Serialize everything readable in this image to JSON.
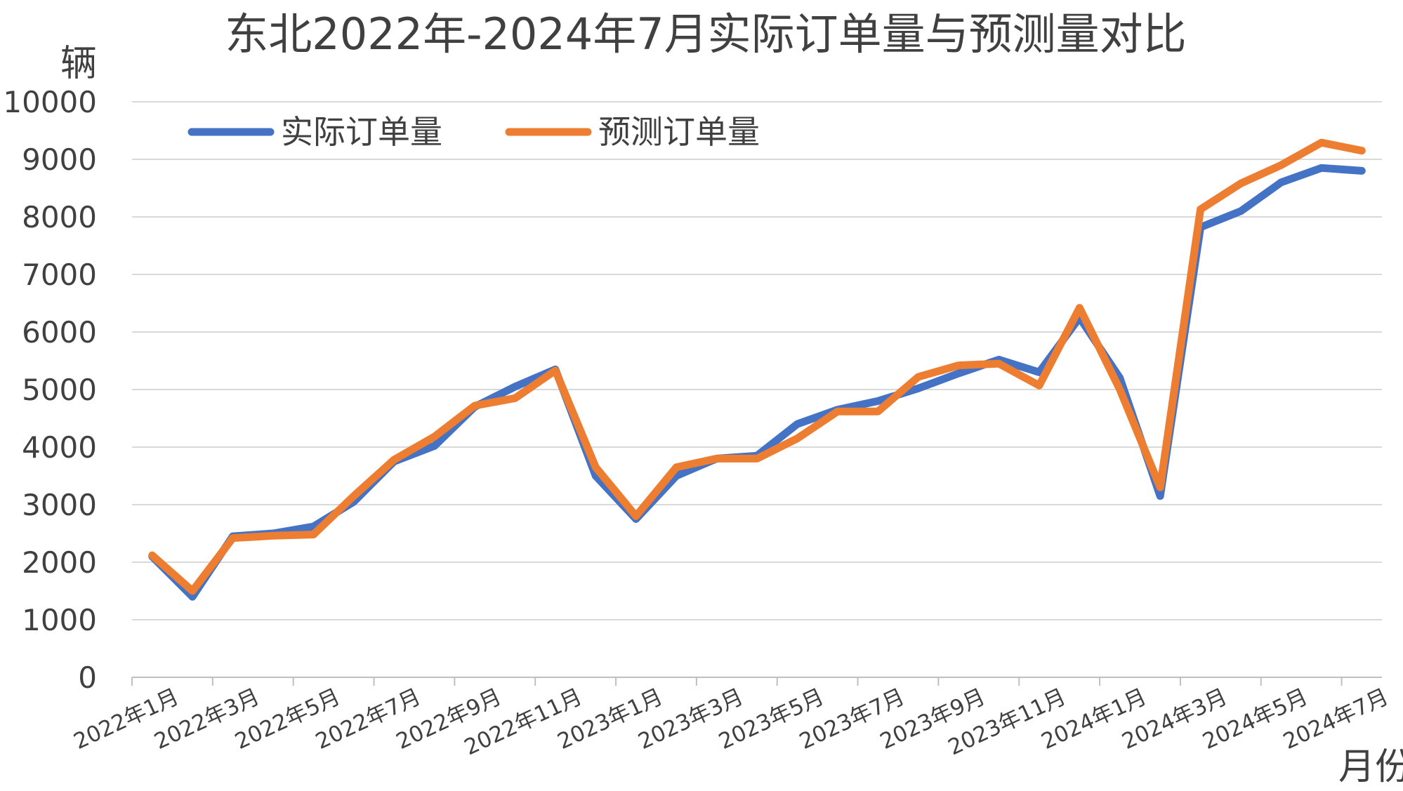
{
  "chart_data": {
    "type": "line",
    "title": "东北2022年-2024年7月实际订单量与预测量对比",
    "ylabel": "辆",
    "xlabel": "月份",
    "ylim": [
      0,
      10000
    ],
    "yticks": [
      "0",
      "1000",
      "2000",
      "3000",
      "4000",
      "5000",
      "6000",
      "7000",
      "8000",
      "9000",
      "10000"
    ],
    "grid": "horizontal",
    "legend": "top-left",
    "x": [
      "2022年1月",
      "2022年2月",
      "2022年3月",
      "2022年4月",
      "2022年5月",
      "2022年6月",
      "2022年7月",
      "2022年8月",
      "2022年9月",
      "2022年10月",
      "2022年11月",
      "2022年12月",
      "2023年1月",
      "2023年2月",
      "2023年3月",
      "2023年4月",
      "2023年5月",
      "2023年6月",
      "2023年7月",
      "2023年8月",
      "2023年9月",
      "2023年10月",
      "2023年11月",
      "2023年12月",
      "2024年1月",
      "2024年2月",
      "2024年3月",
      "2024年4月",
      "2024年5月",
      "2024年6月",
      "2024年7月"
    ],
    "xtick_labels": [
      "2022年1月",
      "2022年3月",
      "2022年5月",
      "2022年7月",
      "2022年9月",
      "2022年11月",
      "2023年1月",
      "2023年3月",
      "2023年5月",
      "2023年7月",
      "2023年9月",
      "2023年11月",
      "2024年1月",
      "2024年3月",
      "2024年5月",
      "2024年7月"
    ],
    "series": [
      {
        "name": "实际订单量",
        "color": "#4472c4",
        "values": [
          2100,
          1400,
          2450,
          2500,
          2620,
          3050,
          3750,
          4020,
          4700,
          5050,
          5350,
          3500,
          2750,
          3500,
          3800,
          3850,
          4400,
          4650,
          4800,
          5020,
          5280,
          5520,
          5300,
          6250,
          5200,
          3150,
          7820,
          8100,
          8600,
          8850,
          8800
        ]
      },
      {
        "name": "预测订单量",
        "color": "#ed7d31",
        "values": [
          2120,
          1500,
          2420,
          2460,
          2480,
          3150,
          3780,
          4180,
          4720,
          4850,
          5330,
          3650,
          2800,
          3650,
          3800,
          3800,
          4150,
          4620,
          4620,
          5220,
          5420,
          5450,
          5070,
          6420,
          5000,
          3300,
          8130,
          8580,
          8900,
          9290,
          9150
        ]
      }
    ]
  }
}
